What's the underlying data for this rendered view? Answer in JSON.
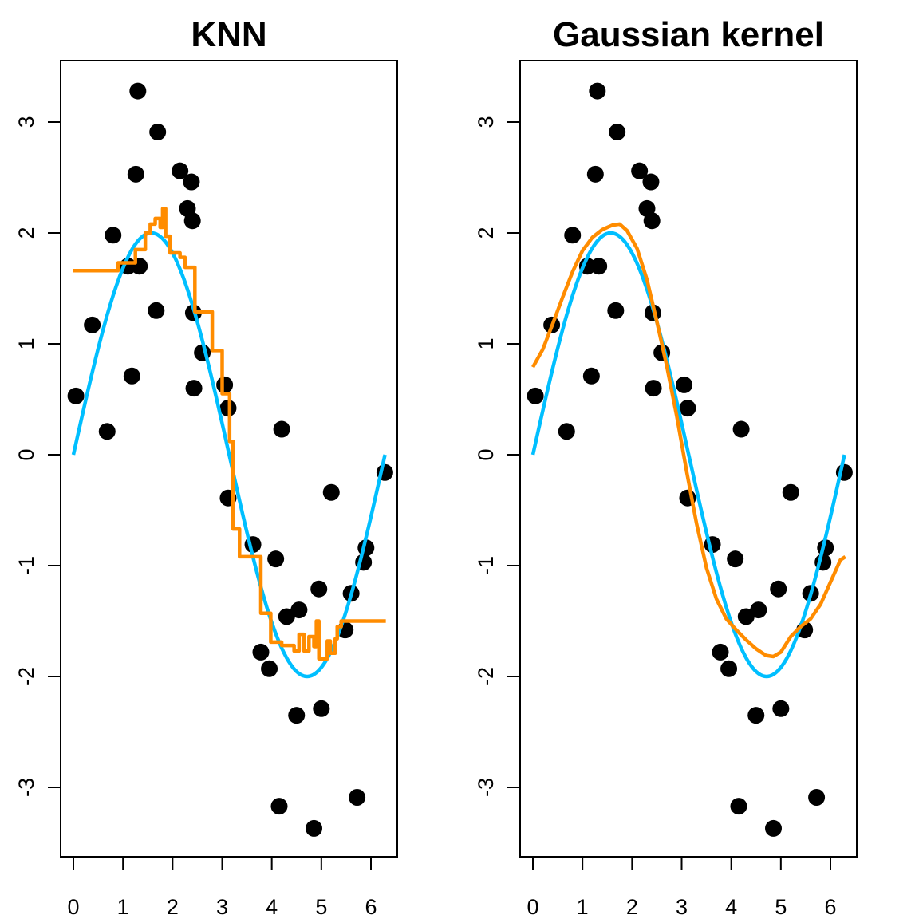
{
  "chart_data": [
    {
      "type": "scatter",
      "title": "KNN",
      "xlim": [
        0,
        6.3
      ],
      "ylim": [
        -3.5,
        3.5
      ],
      "xticks": [
        0,
        1,
        2,
        3,
        4,
        5,
        6
      ],
      "yticks": [
        -3,
        -2,
        -1,
        0,
        1,
        2,
        3
      ],
      "xlabel": "",
      "ylabel": "",
      "points": [
        [
          0.05,
          0.53
        ],
        [
          0.38,
          1.17
        ],
        [
          0.68,
          0.21
        ],
        [
          0.8,
          1.98
        ],
        [
          1.1,
          1.7
        ],
        [
          1.18,
          0.71
        ],
        [
          1.26,
          2.53
        ],
        [
          1.3,
          3.28
        ],
        [
          1.33,
          1.7
        ],
        [
          1.67,
          1.3
        ],
        [
          1.7,
          2.91
        ],
        [
          2.15,
          2.56
        ],
        [
          2.3,
          2.22
        ],
        [
          2.38,
          2.46
        ],
        [
          2.4,
          2.11
        ],
        [
          2.42,
          1.28
        ],
        [
          2.43,
          0.6
        ],
        [
          2.6,
          0.92
        ],
        [
          3.05,
          0.63
        ],
        [
          3.12,
          0.42
        ],
        [
          3.12,
          -0.39
        ],
        [
          3.62,
          -0.81
        ],
        [
          3.78,
          -1.78
        ],
        [
          3.95,
          -1.93
        ],
        [
          4.08,
          -0.94
        ],
        [
          4.15,
          -3.17
        ],
        [
          4.2,
          0.23
        ],
        [
          4.3,
          -1.46
        ],
        [
          4.5,
          -2.35
        ],
        [
          4.55,
          -1.4
        ],
        [
          4.85,
          -3.37
        ],
        [
          4.95,
          -1.21
        ],
        [
          5.0,
          -2.29
        ],
        [
          5.2,
          -0.34
        ],
        [
          5.48,
          -1.58
        ],
        [
          5.6,
          -1.25
        ],
        [
          5.72,
          -3.09
        ],
        [
          5.85,
          -0.97
        ],
        [
          5.9,
          -0.84
        ],
        [
          6.28,
          -0.16
        ]
      ],
      "series": [
        {
          "kind": "function",
          "color": "#00bfff",
          "x_range": [
            0,
            6.2832
          ],
          "amplitude": 2
        },
        {
          "kind": "step",
          "color": "#ff8c00",
          "points": [
            [
              0,
              1.66
            ],
            [
              0.9,
              1.66
            ],
            [
              0.9,
              1.73
            ],
            [
              1.25,
              1.73
            ],
            [
              1.25,
              1.85
            ],
            [
              1.45,
              1.85
            ],
            [
              1.45,
              2.0
            ],
            [
              1.55,
              2.0
            ],
            [
              1.55,
              2.08
            ],
            [
              1.65,
              2.08
            ],
            [
              1.65,
              2.13
            ],
            [
              1.75,
              2.13
            ],
            [
              1.75,
              2.05
            ],
            [
              1.8,
              2.05
            ],
            [
              1.8,
              2.22
            ],
            [
              1.86,
              2.22
            ],
            [
              1.86,
              1.97
            ],
            [
              1.95,
              1.97
            ],
            [
              1.95,
              1.82
            ],
            [
              2.15,
              1.82
            ],
            [
              2.15,
              1.78
            ],
            [
              2.25,
              1.78
            ],
            [
              2.25,
              1.69
            ],
            [
              2.45,
              1.69
            ],
            [
              2.45,
              1.29
            ],
            [
              2.8,
              1.29
            ],
            [
              2.8,
              0.94
            ],
            [
              3.0,
              0.94
            ],
            [
              3.0,
              0.55
            ],
            [
              3.15,
              0.55
            ],
            [
              3.15,
              0.12
            ],
            [
              3.22,
              0.12
            ],
            [
              3.22,
              -0.67
            ],
            [
              3.35,
              -0.67
            ],
            [
              3.35,
              -0.92
            ],
            [
              3.78,
              -0.92
            ],
            [
              3.78,
              -1.43
            ],
            [
              3.98,
              -1.43
            ],
            [
              3.98,
              -1.69
            ],
            [
              4.2,
              -1.69
            ],
            [
              4.2,
              -1.72
            ],
            [
              4.45,
              -1.72
            ],
            [
              4.45,
              -1.77
            ],
            [
              4.55,
              -1.77
            ],
            [
              4.55,
              -1.62
            ],
            [
              4.65,
              -1.62
            ],
            [
              4.65,
              -1.77
            ],
            [
              4.75,
              -1.77
            ],
            [
              4.75,
              -1.64
            ],
            [
              4.85,
              -1.64
            ],
            [
              4.85,
              -1.73
            ],
            [
              4.9,
              -1.73
            ],
            [
              4.9,
              -1.5
            ],
            [
              4.95,
              -1.5
            ],
            [
              4.95,
              -1.84
            ],
            [
              5.12,
              -1.84
            ],
            [
              5.12,
              -1.68
            ],
            [
              5.18,
              -1.68
            ],
            [
              5.18,
              -1.79
            ],
            [
              5.28,
              -1.79
            ],
            [
              5.28,
              -1.66
            ],
            [
              5.32,
              -1.66
            ],
            [
              5.32,
              -1.55
            ],
            [
              5.4,
              -1.55
            ],
            [
              5.4,
              -1.5
            ],
            [
              6.3,
              -1.5
            ]
          ]
        }
      ]
    },
    {
      "type": "scatter",
      "title": "Gaussian kernel",
      "xlim": [
        0,
        6.3
      ],
      "ylim": [
        -3.5,
        3.5
      ],
      "xticks": [
        0,
        1,
        2,
        3,
        4,
        5,
        6
      ],
      "yticks": [
        -3,
        -2,
        -1,
        0,
        1,
        2,
        3
      ],
      "xlabel": "",
      "ylabel": "",
      "points": [
        [
          0.05,
          0.53
        ],
        [
          0.38,
          1.17
        ],
        [
          0.68,
          0.21
        ],
        [
          0.8,
          1.98
        ],
        [
          1.1,
          1.7
        ],
        [
          1.18,
          0.71
        ],
        [
          1.26,
          2.53
        ],
        [
          1.3,
          3.28
        ],
        [
          1.33,
          1.7
        ],
        [
          1.67,
          1.3
        ],
        [
          1.7,
          2.91
        ],
        [
          2.15,
          2.56
        ],
        [
          2.3,
          2.22
        ],
        [
          2.38,
          2.46
        ],
        [
          2.4,
          2.11
        ],
        [
          2.42,
          1.28
        ],
        [
          2.43,
          0.6
        ],
        [
          2.6,
          0.92
        ],
        [
          3.05,
          0.63
        ],
        [
          3.12,
          0.42
        ],
        [
          3.12,
          -0.39
        ],
        [
          3.62,
          -0.81
        ],
        [
          3.78,
          -1.78
        ],
        [
          3.95,
          -1.93
        ],
        [
          4.08,
          -0.94
        ],
        [
          4.15,
          -3.17
        ],
        [
          4.2,
          0.23
        ],
        [
          4.3,
          -1.46
        ],
        [
          4.5,
          -2.35
        ],
        [
          4.55,
          -1.4
        ],
        [
          4.85,
          -3.37
        ],
        [
          4.95,
          -1.21
        ],
        [
          5.0,
          -2.29
        ],
        [
          5.2,
          -0.34
        ],
        [
          5.48,
          -1.58
        ],
        [
          5.6,
          -1.25
        ],
        [
          5.72,
          -3.09
        ],
        [
          5.85,
          -0.97
        ],
        [
          5.9,
          -0.84
        ],
        [
          6.28,
          -0.16
        ]
      ],
      "series": [
        {
          "kind": "function",
          "color": "#00bfff",
          "x_range": [
            0,
            6.2832
          ],
          "amplitude": 2
        },
        {
          "kind": "line",
          "color": "#ff8c00",
          "points": [
            [
              0,
              0.79
            ],
            [
              0.2,
              0.95
            ],
            [
              0.4,
              1.18
            ],
            [
              0.6,
              1.42
            ],
            [
              0.8,
              1.65
            ],
            [
              1.0,
              1.84
            ],
            [
              1.2,
              1.96
            ],
            [
              1.4,
              2.03
            ],
            [
              1.6,
              2.07
            ],
            [
              1.75,
              2.08
            ],
            [
              1.9,
              2.02
            ],
            [
              2.1,
              1.86
            ],
            [
              2.3,
              1.58
            ],
            [
              2.5,
              1.2
            ],
            [
              2.7,
              0.8
            ],
            [
              2.9,
              0.35
            ],
            [
              3.1,
              -0.15
            ],
            [
              3.3,
              -0.62
            ],
            [
              3.5,
              -1.02
            ],
            [
              3.7,
              -1.3
            ],
            [
              3.9,
              -1.48
            ],
            [
              4.1,
              -1.58
            ],
            [
              4.3,
              -1.67
            ],
            [
              4.5,
              -1.75
            ],
            [
              4.7,
              -1.81
            ],
            [
              4.85,
              -1.82
            ],
            [
              5.0,
              -1.78
            ],
            [
              5.2,
              -1.64
            ],
            [
              5.4,
              -1.55
            ],
            [
              5.6,
              -1.48
            ],
            [
              5.8,
              -1.35
            ],
            [
              6.0,
              -1.15
            ],
            [
              6.2,
              -0.95
            ],
            [
              6.3,
              -0.92
            ]
          ]
        }
      ]
    }
  ]
}
